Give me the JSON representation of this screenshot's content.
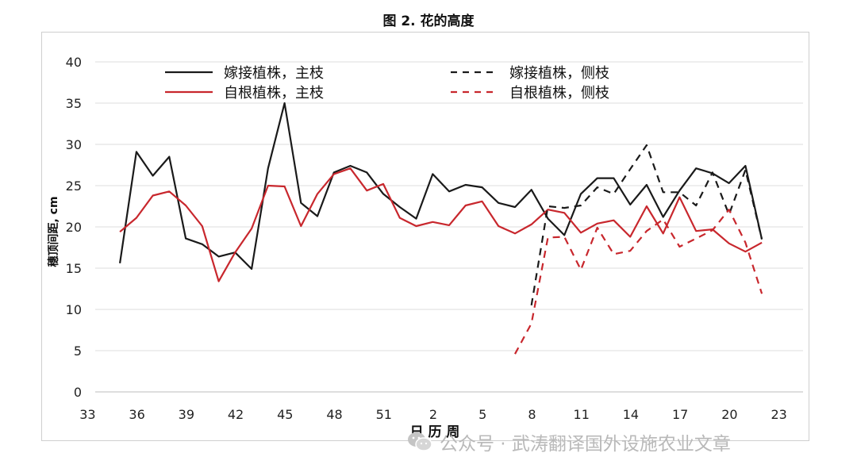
{
  "page_title": "图 2. 花的高度",
  "watermark": {
    "text": "公众号 · 武涛翻译国外设施农业文章",
    "icon": "wechat-icon"
  },
  "chart_data": {
    "type": "line",
    "title": "图 2. 花的高度",
    "xlabel": "日 历 周",
    "ylabel": "穗顶间距, cm",
    "ylim": [
      0,
      40
    ],
    "yticks": [
      0,
      5,
      10,
      15,
      20,
      25,
      30,
      35,
      40
    ],
    "xticks": [
      "33",
      "36",
      "39",
      "42",
      "45",
      "48",
      "51",
      "2",
      "5",
      "8",
      "11",
      "14",
      "17",
      "20",
      "23"
    ],
    "x": [
      "33",
      "34",
      "35",
      "36",
      "37",
      "38",
      "39",
      "40",
      "41",
      "42",
      "43",
      "44",
      "45",
      "46",
      "47",
      "48",
      "49",
      "50",
      "51",
      "52",
      "1",
      "2",
      "3",
      "4",
      "5",
      "6",
      "7",
      "8",
      "9",
      "10",
      "11",
      "12",
      "13",
      "14",
      "15",
      "16",
      "17",
      "18",
      "19",
      "20",
      "21",
      "22",
      "23"
    ],
    "grid": true,
    "legend_position": "top",
    "series": [
      {
        "name": "嫁接植株，主枝",
        "color": "#1a1a1a",
        "dash": "solid",
        "values": [
          null,
          15.6,
          29.1,
          26.2,
          28.5,
          18.6,
          17.9,
          16.4,
          16.9,
          14.9,
          27.1,
          35.0,
          22.9,
          21.3,
          26.6,
          27.4,
          26.6,
          24.0,
          22.4,
          21.0,
          26.4,
          24.3,
          25.1,
          24.8,
          22.9,
          22.4,
          24.5,
          21.0,
          19.0,
          24.0,
          25.9,
          25.9,
          22.7,
          25.1,
          21.2,
          24.4,
          27.1,
          26.5,
          25.3,
          27.4,
          18.5,
          null,
          null
        ]
      },
      {
        "name": "自根植株，主枝",
        "color": "#c8272d",
        "dash": "solid",
        "values": [
          null,
          19.4,
          21.1,
          23.8,
          24.3,
          22.6,
          20.1,
          13.4,
          16.9,
          19.8,
          25.0,
          24.9,
          20.1,
          24.0,
          26.4,
          27.1,
          24.4,
          25.2,
          21.1,
          20.1,
          20.6,
          20.2,
          22.6,
          23.1,
          20.1,
          19.2,
          20.3,
          22.1,
          21.7,
          19.3,
          20.4,
          20.8,
          18.8,
          22.5,
          19.2,
          23.6,
          19.5,
          19.7,
          18.0,
          17.0,
          18.1,
          null,
          null
        ]
      },
      {
        "name": "嫁接植株，侧枝",
        "color": "#1a1a1a",
        "dash": "dashed",
        "values": [
          null,
          null,
          null,
          null,
          null,
          null,
          null,
          null,
          null,
          null,
          null,
          null,
          null,
          null,
          null,
          null,
          null,
          null,
          null,
          null,
          null,
          null,
          null,
          null,
          null,
          null,
          10.5,
          22.5,
          22.3,
          22.6,
          24.8,
          24.0,
          27.0,
          29.9,
          24.2,
          24.2,
          22.6,
          26.6,
          21.5,
          26.9,
          18.5,
          null,
          null
        ]
      },
      {
        "name": "自根植株，侧枝",
        "color": "#c8272d",
        "dash": "dashed",
        "values": [
          null,
          null,
          null,
          null,
          null,
          null,
          null,
          null,
          null,
          null,
          null,
          null,
          null,
          null,
          null,
          null,
          null,
          null,
          null,
          null,
          null,
          null,
          null,
          null,
          null,
          4.6,
          8.3,
          18.7,
          18.8,
          14.8,
          19.9,
          16.7,
          17.1,
          19.5,
          20.9,
          17.6,
          18.6,
          19.6,
          22.1,
          18.1,
          11.9,
          null,
          null
        ]
      }
    ]
  }
}
